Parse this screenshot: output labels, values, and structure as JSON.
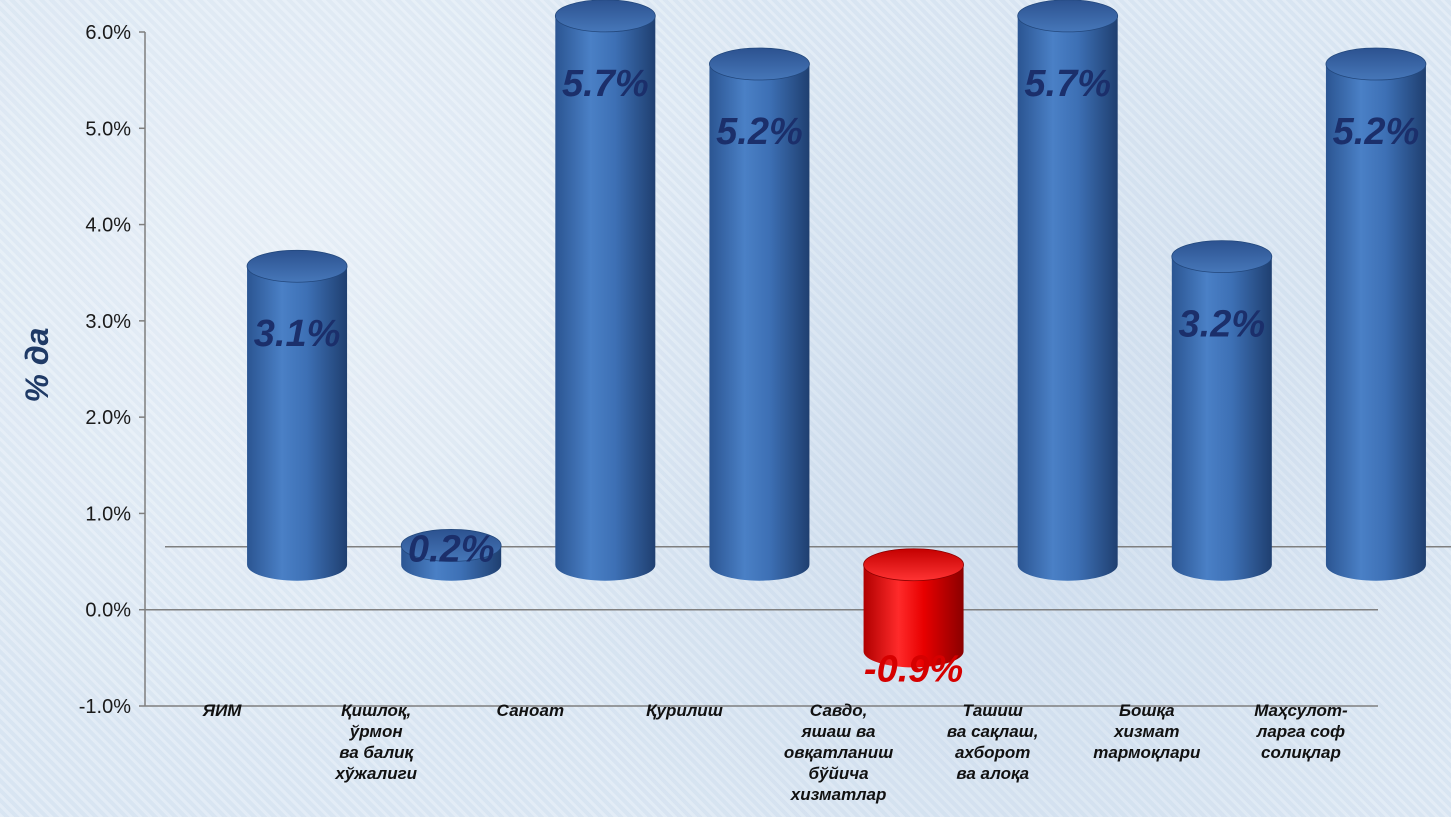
{
  "chart_data": {
    "type": "bar",
    "ylabel": "% да",
    "ylim": [
      -1.0,
      6.0
    ],
    "ytick_step": 1.0,
    "ytick_labels": [
      "-1.0%",
      "0.0%",
      "1.0%",
      "2.0%",
      "3.0%",
      "4.0%",
      "5.0%",
      "6.0%"
    ],
    "categories": [
      [
        "ЯИМ"
      ],
      [
        "Қишлоқ,",
        "ўрмон",
        "ва балиқ",
        "хўжалиги"
      ],
      [
        "Саноат"
      ],
      [
        "Қурилиш"
      ],
      [
        "Савдо,",
        "яшаш ва",
        "овқатланиш",
        "бўйича",
        "хизматлар"
      ],
      [
        "Ташиш",
        "ва сақлаш,",
        "ахборот",
        "ва алоқа"
      ],
      [
        "Бошқа",
        "хизмат",
        "тармоқлари"
      ],
      [
        "Маҳсулот-",
        "ларга соф",
        "солиқлар"
      ]
    ],
    "values": [
      3.1,
      0.2,
      5.7,
      5.2,
      -0.9,
      5.7,
      3.2,
      5.2
    ],
    "data_labels": [
      "3.1%",
      "0.2%",
      "5.7%",
      "5.2%",
      "-0.9%",
      "5.7%",
      "3.2%",
      "5.2%"
    ],
    "colors": {
      "positive": "#3a6fb5",
      "positive_dark": "#23487d",
      "positive_light": "#7fa7dc",
      "negative": "#e00000",
      "negative_dark": "#8c0000",
      "negative_light": "#ff6a6a",
      "label_positive": "#1b2f6b",
      "label_negative": "#d60000",
      "axis": "#7f7f7f"
    },
    "grid": false,
    "legend": "none"
  }
}
